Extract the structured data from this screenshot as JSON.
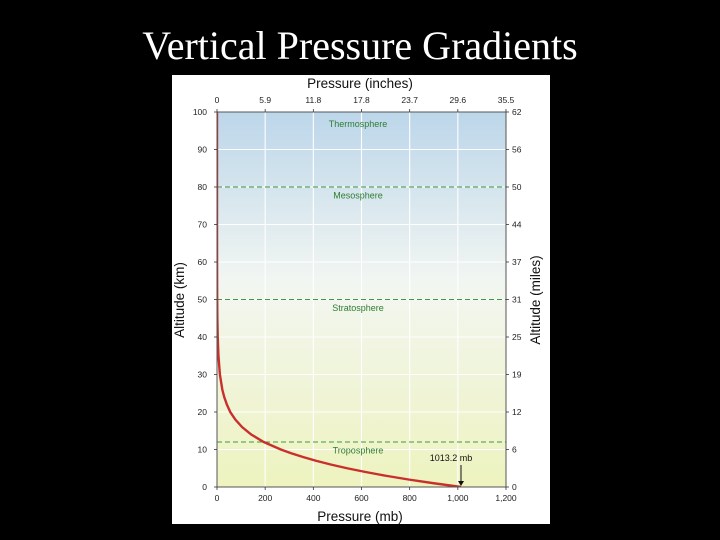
{
  "slide": {
    "title": "Vertical Pressure Gradients"
  },
  "colors": {
    "curve": "#c9302c",
    "boundary": "#3e9a45",
    "layer_label": "#2e7d32",
    "plot_top": "#bcd6ea",
    "plot_bottom": "#eef3bf"
  },
  "chart_data": {
    "type": "line",
    "x_top_label": "Pressure (inches)",
    "x_bottom_label": "Pressure (mb)",
    "y_left_label": "Altitude (km)",
    "y_right_label": "Altitude (miles)",
    "xlim": [
      0,
      1200
    ],
    "ylim": [
      0,
      100
    ],
    "grid": true,
    "x_ticks_mb": [
      0,
      200,
      400,
      600,
      800,
      1000,
      1200
    ],
    "x_tick_labels_mb": [
      "0",
      "200",
      "400",
      "600",
      "800",
      "1,000",
      "1,200"
    ],
    "x_ticks_inches": [
      {
        "mb": 0,
        "label": "0"
      },
      {
        "mb": 200,
        "label": "5.9"
      },
      {
        "mb": 400,
        "label": "11.8"
      },
      {
        "mb": 600,
        "label": "17.8"
      },
      {
        "mb": 800,
        "label": "23.7"
      },
      {
        "mb": 1000,
        "label": "29.6"
      },
      {
        "mb": 1200,
        "label": "35.5"
      }
    ],
    "y_ticks_km": [
      0,
      10,
      20,
      30,
      40,
      50,
      60,
      70,
      80,
      90,
      100
    ],
    "y_ticks_miles": [
      {
        "km": 0,
        "label": "0"
      },
      {
        "km": 10,
        "label": "6"
      },
      {
        "km": 20,
        "label": "12"
      },
      {
        "km": 30,
        "label": "19"
      },
      {
        "km": 40,
        "label": "25"
      },
      {
        "km": 50,
        "label": "31"
      },
      {
        "km": 60,
        "label": "37"
      },
      {
        "km": 70,
        "label": "44"
      },
      {
        "km": 80,
        "label": "50"
      },
      {
        "km": 90,
        "label": "56"
      },
      {
        "km": 100,
        "label": "62"
      }
    ],
    "series": [
      {
        "x": [
          1013.2,
          900,
          795,
          701,
          617,
          540,
          472,
          411,
          357,
          308,
          265,
          194,
          142,
          104,
          76,
          55,
          41,
          30,
          22,
          12,
          6,
          3,
          1.5,
          0.8,
          0.3,
          0.1,
          0.03
        ],
        "y": [
          0,
          1,
          2,
          3,
          4,
          5,
          6,
          7,
          8,
          9,
          10,
          12,
          14,
          16,
          18,
          20,
          22,
          24,
          26,
          30,
          35,
          40,
          45,
          50,
          60,
          70,
          100
        ]
      }
    ],
    "layers": [
      {
        "name": "Thermosphere",
        "label_km": 96
      },
      {
        "name": "Mesosphere",
        "label_km": 77
      },
      {
        "name": "Stratosphere",
        "label_km": 47
      },
      {
        "name": "Troposphere",
        "label_km": 9
      }
    ],
    "boundaries_km": [
      12,
      50,
      80
    ],
    "annotation": {
      "text": "1013.2 mb",
      "x": 1013.2,
      "y": 0
    }
  }
}
